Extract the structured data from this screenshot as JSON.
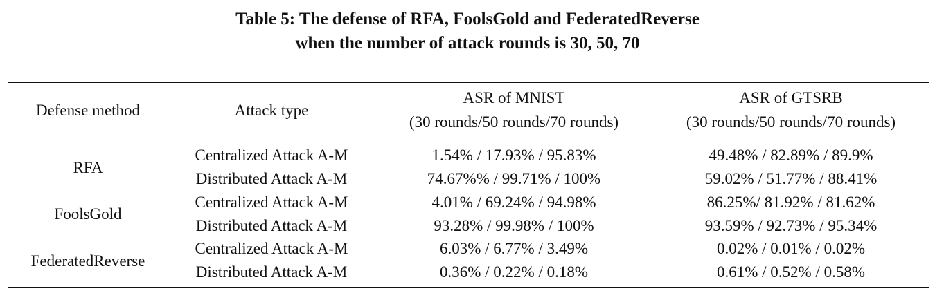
{
  "caption": {
    "line1": "Table 5: The defense of RFA, FoolsGold and FederatedReverse",
    "line2": "when the number of attack rounds is 30, 50, 70"
  },
  "header": {
    "defense_method": "Defense method",
    "attack_type": "Attack type",
    "mnist_line1": "ASR of MNIST",
    "mnist_line2": "(30 rounds/50 rounds/70 rounds)",
    "gtsrb_line1": "ASR of GTSRB",
    "gtsrb_line2": "(30 rounds/50 rounds/70 rounds)"
  },
  "groups": [
    {
      "method": "RFA",
      "rows": [
        {
          "attack": "Centralized Attack A-M",
          "mnist": "1.54% / 17.93% / 95.83%",
          "gtsrb": "49.48% / 82.89% / 89.9%"
        },
        {
          "attack": "Distributed Attack A-M",
          "mnist": "74.67%% / 99.71% / 100%",
          "gtsrb": "59.02% / 51.77% / 88.41%"
        }
      ]
    },
    {
      "method": "FoolsGold",
      "rows": [
        {
          "attack": "Centralized Attack A-M",
          "mnist": "4.01% / 69.24% / 94.98%",
          "gtsrb": "86.25%/ 81.92% / 81.62%"
        },
        {
          "attack": "Distributed Attack A-M",
          "mnist": "93.28% / 99.98% / 100%",
          "gtsrb": "93.59% / 92.73% / 95.34%"
        }
      ]
    },
    {
      "method": "FederatedReverse",
      "rows": [
        {
          "attack": "Centralized Attack A-M",
          "mnist": "6.03% / 6.77% / 3.49%",
          "gtsrb": "0.02% / 0.01% / 0.02%"
        },
        {
          "attack": "Distributed Attack A-M",
          "mnist": "0.36% / 0.22% / 0.18%",
          "gtsrb": "0.61% / 0.52% / 0.58%"
        }
      ]
    }
  ]
}
